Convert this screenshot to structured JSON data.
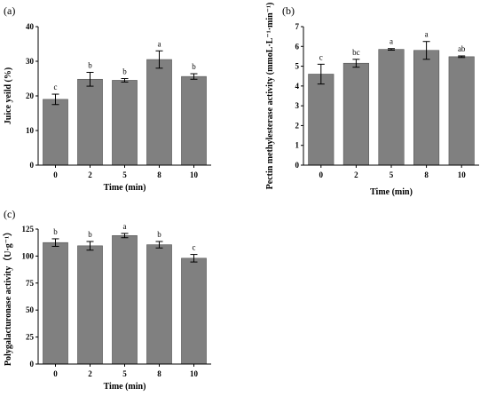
{
  "chart_data": [
    {
      "type": "bar",
      "panel_label": "(a)",
      "categories": [
        "0",
        "2",
        "5",
        "8",
        "10"
      ],
      "values": [
        19.0,
        24.8,
        24.5,
        30.5,
        25.6
      ],
      "errors": [
        1.5,
        2.0,
        0.5,
        2.5,
        0.8
      ],
      "annotations": [
        "c",
        "b",
        "b",
        "a",
        "b"
      ],
      "xlabel": "Time (min)",
      "ylabel": "Juice yeild (%)",
      "ylim": [
        0,
        40
      ],
      "yticks": [
        0,
        10,
        20,
        30,
        40
      ],
      "bar_color": "#808080"
    },
    {
      "type": "bar",
      "panel_label": "(b)",
      "categories": [
        "0",
        "2",
        "5",
        "8",
        "10"
      ],
      "values": [
        4.6,
        5.15,
        5.85,
        5.8,
        5.48
      ],
      "errors": [
        0.5,
        0.2,
        0.04,
        0.45,
        0.04
      ],
      "annotations": [
        "c",
        "bc",
        "a",
        "a",
        "ab"
      ],
      "xlabel": "Time (min)",
      "ylabel": "Pectin methylesterase activity (mmoL·L⁻¹·min⁻¹)",
      "ylim": [
        0,
        7
      ],
      "yticks": [
        0,
        1,
        2,
        3,
        4,
        5,
        6,
        7
      ],
      "bar_color": "#808080"
    },
    {
      "type": "bar",
      "panel_label": "(c)",
      "categories": [
        "0",
        "2",
        "5",
        "8",
        "10"
      ],
      "values": [
        112.5,
        109.5,
        119,
        110.5,
        98
      ],
      "errors": [
        3.5,
        4.0,
        2.0,
        3.0,
        3.5
      ],
      "annotations": [
        "b",
        "b",
        "a",
        "b",
        "c"
      ],
      "xlabel": "Time (min)",
      "ylabel": "Polygalacturonase activity（U·g⁻¹）",
      "ylim": [
        0,
        125
      ],
      "yticks": [
        0,
        25,
        50,
        75,
        100,
        125
      ],
      "bar_color": "#808080"
    }
  ]
}
